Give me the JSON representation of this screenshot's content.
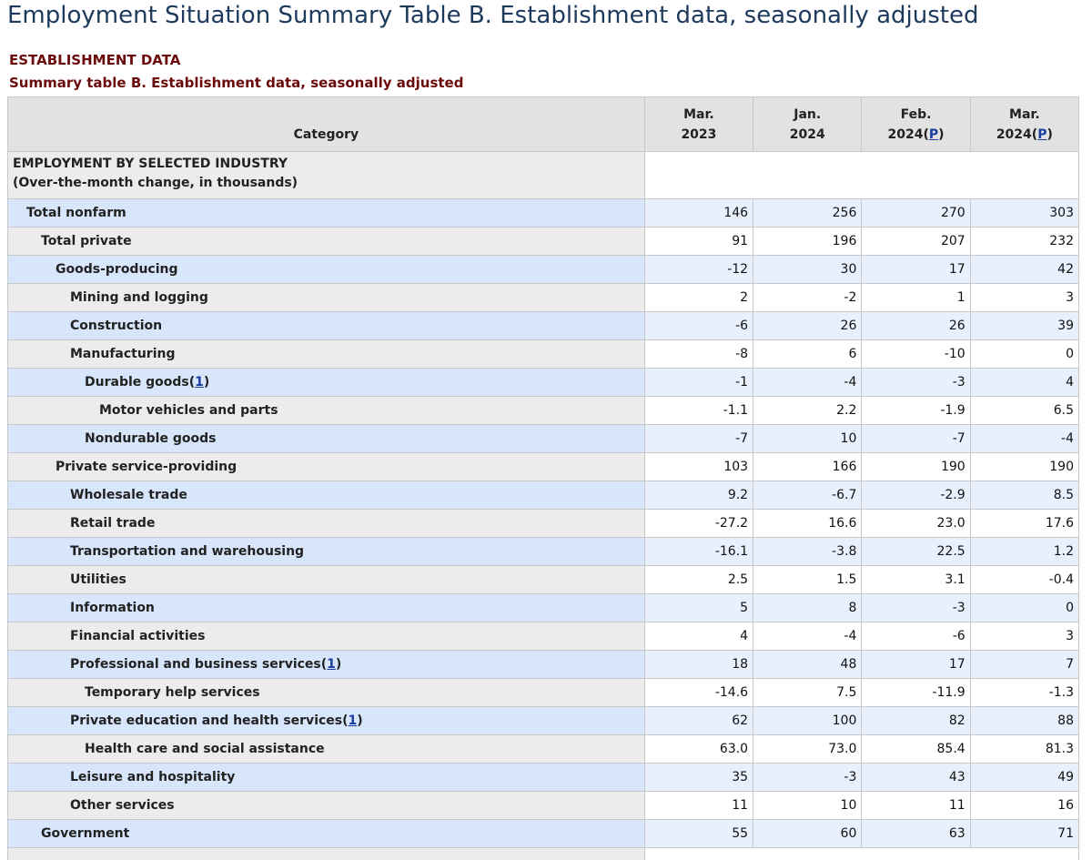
{
  "page": {
    "title": "Employment Situation Summary Table B. Establishment data, seasonally adjusted",
    "section_heading": "ESTABLISHMENT DATA",
    "table_caption": "Summary table B. Establishment data, seasonally adjusted"
  },
  "table": {
    "headers": {
      "category": "Category",
      "columns": [
        {
          "line1": "Mar.",
          "line2": "2023",
          "note": ""
        },
        {
          "line1": "Jan.",
          "line2": "2024",
          "note": ""
        },
        {
          "line1": "Feb.",
          "line2": "2024(",
          "note": "P",
          "close": ")"
        },
        {
          "line1": "Mar.",
          "line2": "2024(",
          "note": "P",
          "close": ")"
        }
      ]
    },
    "section": {
      "line1": "EMPLOYMENT BY SELECTED INDUSTRY",
      "line2": "(Over-the-month change, in thousands)"
    },
    "rows": [
      {
        "label": "Total nonfarm",
        "indent": 1,
        "values": [
          "146",
          "256",
          "270",
          "303"
        ]
      },
      {
        "label": "Total private",
        "indent": 2,
        "values": [
          "91",
          "196",
          "207",
          "232"
        ]
      },
      {
        "label": "Goods-producing",
        "indent": 3,
        "values": [
          "-12",
          "30",
          "17",
          "42"
        ]
      },
      {
        "label": "Mining and logging",
        "indent": 4,
        "values": [
          "2",
          "-2",
          "1",
          "3"
        ]
      },
      {
        "label": "Construction",
        "indent": 4,
        "values": [
          "-6",
          "26",
          "26",
          "39"
        ]
      },
      {
        "label": "Manufacturing",
        "indent": 4,
        "values": [
          "-8",
          "6",
          "-10",
          "0"
        ]
      },
      {
        "label": "Durable goods",
        "footnote": "1",
        "indent": 5,
        "values": [
          "-1",
          "-4",
          "-3",
          "4"
        ]
      },
      {
        "label": "Motor vehicles and parts",
        "indent": 6,
        "values": [
          "-1.1",
          "2.2",
          "-1.9",
          "6.5"
        ]
      },
      {
        "label": "Nondurable goods",
        "indent": 5,
        "values": [
          "-7",
          "10",
          "-7",
          "-4"
        ]
      },
      {
        "label": "Private service-providing",
        "indent": 3,
        "values": [
          "103",
          "166",
          "190",
          "190"
        ]
      },
      {
        "label": "Wholesale trade",
        "indent": 4,
        "values": [
          "9.2",
          "-6.7",
          "-2.9",
          "8.5"
        ]
      },
      {
        "label": "Retail trade",
        "indent": 4,
        "values": [
          "-27.2",
          "16.6",
          "23.0",
          "17.6"
        ]
      },
      {
        "label": "Transportation and warehousing",
        "indent": 4,
        "values": [
          "-16.1",
          "-3.8",
          "22.5",
          "1.2"
        ]
      },
      {
        "label": "Utilities",
        "indent": 4,
        "values": [
          "2.5",
          "1.5",
          "3.1",
          "-0.4"
        ]
      },
      {
        "label": "Information",
        "indent": 4,
        "values": [
          "5",
          "8",
          "-3",
          "0"
        ]
      },
      {
        "label": "Financial activities",
        "indent": 4,
        "values": [
          "4",
          "-4",
          "-6",
          "3"
        ]
      },
      {
        "label": "Professional and business services",
        "footnote": "1",
        "indent": 4,
        "values": [
          "18",
          "48",
          "17",
          "7"
        ]
      },
      {
        "label": "Temporary help services",
        "indent": 5,
        "values": [
          "-14.6",
          "7.5",
          "-11.9",
          "-1.3"
        ]
      },
      {
        "label": "Private education and health services",
        "footnote": "1",
        "indent": 4,
        "values": [
          "62",
          "100",
          "82",
          "88"
        ]
      },
      {
        "label": "Health care and social assistance",
        "indent": 5,
        "values": [
          "63.0",
          "73.0",
          "85.4",
          "81.3"
        ]
      },
      {
        "label": "Leisure and hospitality",
        "indent": 4,
        "values": [
          "35",
          "-3",
          "43",
          "49"
        ]
      },
      {
        "label": "Other services",
        "indent": 4,
        "values": [
          "11",
          "10",
          "11",
          "16"
        ]
      },
      {
        "label": "Government",
        "indent": 2,
        "values": [
          "55",
          "60",
          "63",
          "71"
        ]
      }
    ]
  }
}
